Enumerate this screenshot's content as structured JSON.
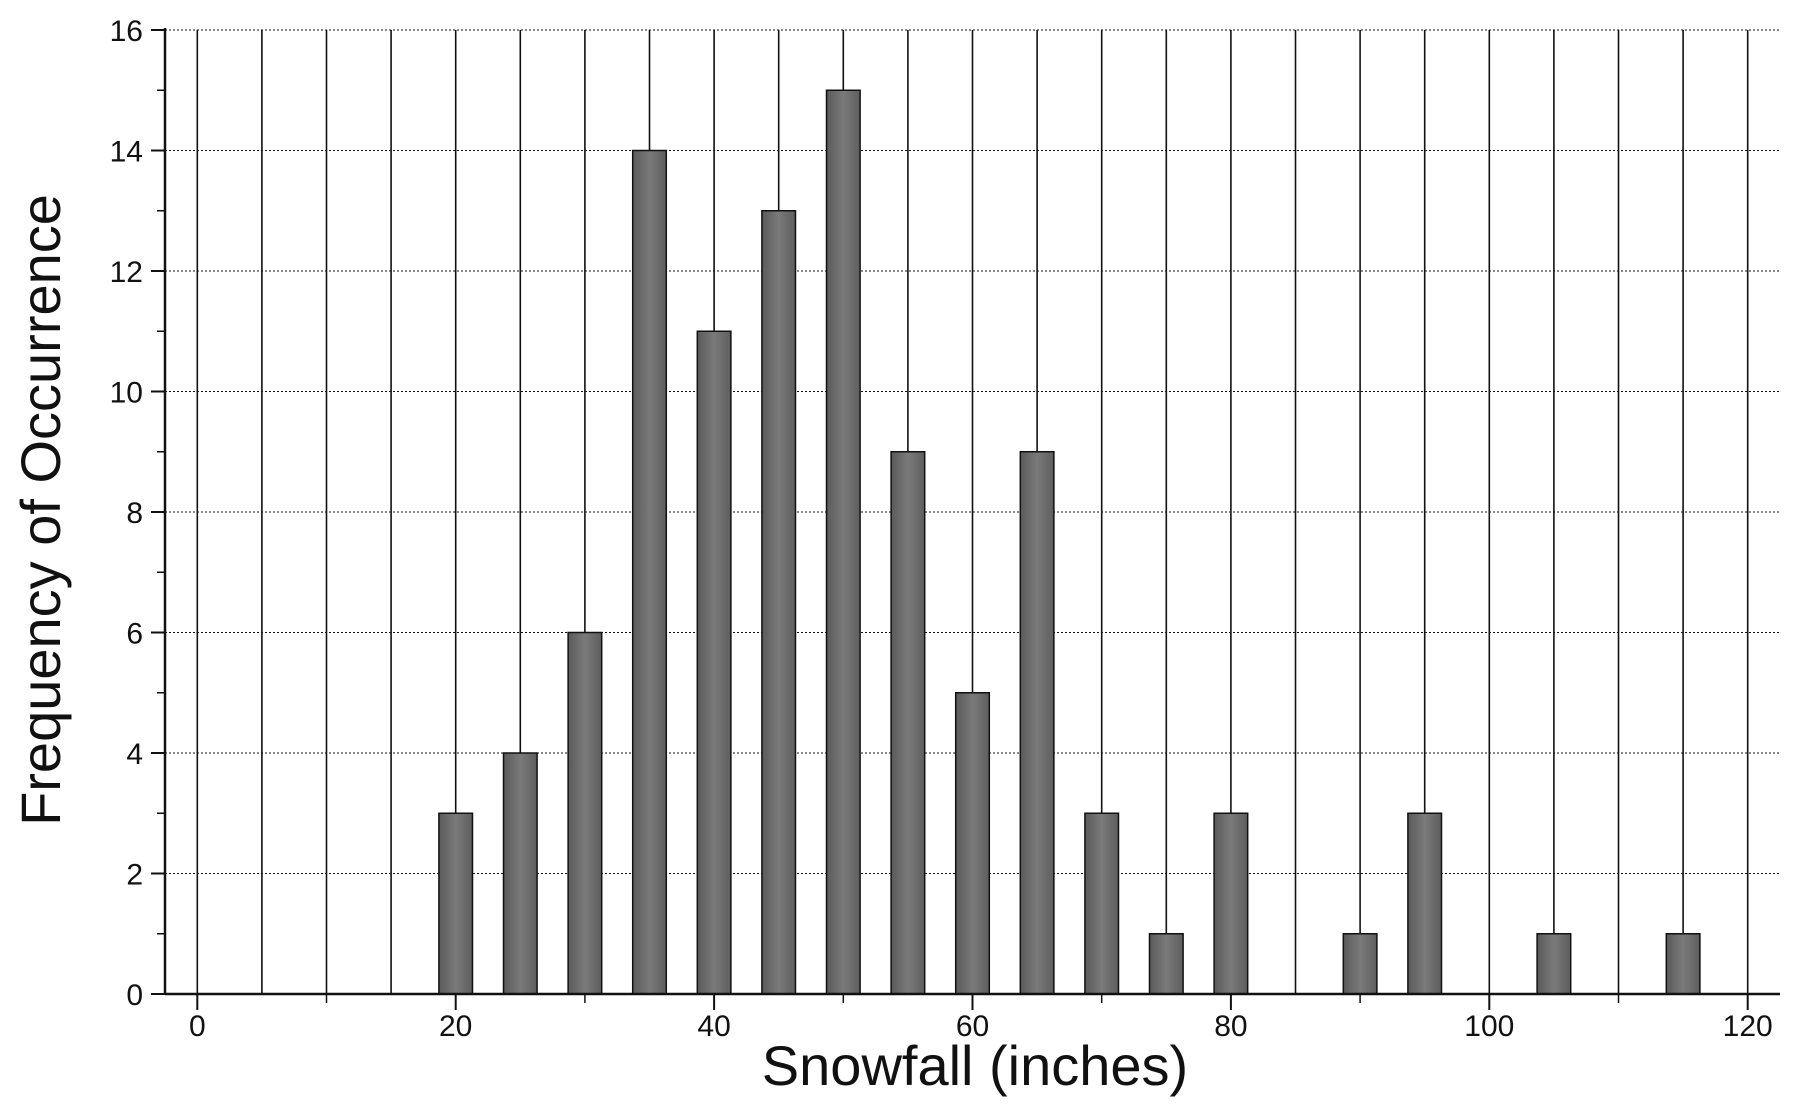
{
  "chart_data": {
    "type": "bar",
    "title": "",
    "xlabel": "Snowfall (inches)",
    "ylabel": "Frequency of Occurrence",
    "x": [
      20,
      25,
      30,
      35,
      40,
      45,
      50,
      55,
      60,
      65,
      70,
      75,
      80,
      85,
      90,
      95,
      100,
      105,
      110,
      115
    ],
    "values": [
      3,
      4,
      6,
      14,
      11,
      13,
      15,
      9,
      5,
      9,
      3,
      1,
      3,
      0,
      1,
      3,
      0,
      1,
      0,
      1
    ],
    "xlim": [
      -2.5,
      122.5
    ],
    "ylim": [
      0,
      16
    ],
    "x_ticks": [
      0,
      20,
      40,
      60,
      80,
      100,
      120
    ],
    "y_ticks": [
      0,
      2,
      4,
      6,
      8,
      10,
      12,
      14,
      16
    ],
    "grid": true,
    "bar_color": "#6e6e6e",
    "bar_edge_color": "#111111",
    "grid_color": "#111111"
  }
}
